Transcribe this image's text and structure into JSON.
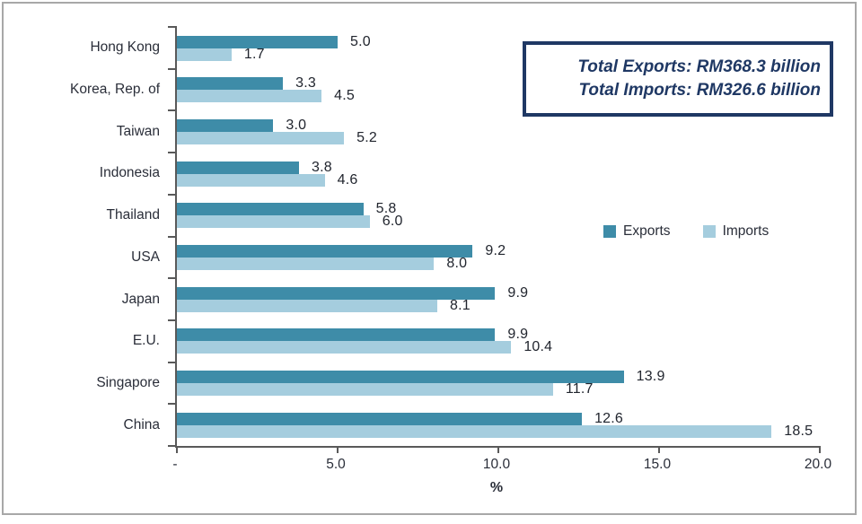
{
  "chart_data": {
    "type": "bar",
    "orientation": "horizontal",
    "categories": [
      "Hong Kong",
      "Korea, Rep. of",
      "Taiwan",
      "Indonesia",
      "Thailand",
      "USA",
      "Japan",
      "E.U.",
      "Singapore",
      "China"
    ],
    "series": [
      {
        "name": "Exports",
        "color": "#3e8ca8",
        "values": [
          5.0,
          3.3,
          3.0,
          3.8,
          5.8,
          9.2,
          9.9,
          9.9,
          13.9,
          12.6
        ]
      },
      {
        "name": "Imports",
        "color": "#a5cdde",
        "values": [
          1.7,
          4.5,
          5.2,
          4.6,
          6.0,
          8.0,
          8.1,
          10.4,
          11.7,
          18.5
        ]
      }
    ],
    "xlabel": "%",
    "xlim": [
      0,
      20
    ],
    "x_ticks": [
      {
        "value": 0,
        "label": "-"
      },
      {
        "value": 5,
        "label": "5.0"
      },
      {
        "value": 10,
        "label": "10.0"
      },
      {
        "value": 15,
        "label": "15.0"
      },
      {
        "value": 20,
        "label": "20.0"
      }
    ],
    "value_label_decimals": 1,
    "grid": false,
    "legend_position": "inside-right-middle"
  },
  "annotation": {
    "line1": "Total Exports: RM368.3 billion",
    "line2": "Total Imports: RM326.6 billion"
  },
  "colors": {
    "exports_bar": "#3e8ca8",
    "imports_bar": "#a5cdde",
    "annotation_border": "#1f3864",
    "annotation_text": "#1f3864",
    "axis_line": "#595959",
    "label_text": "#2a2e39",
    "frame_border": "#a8a8a8"
  }
}
